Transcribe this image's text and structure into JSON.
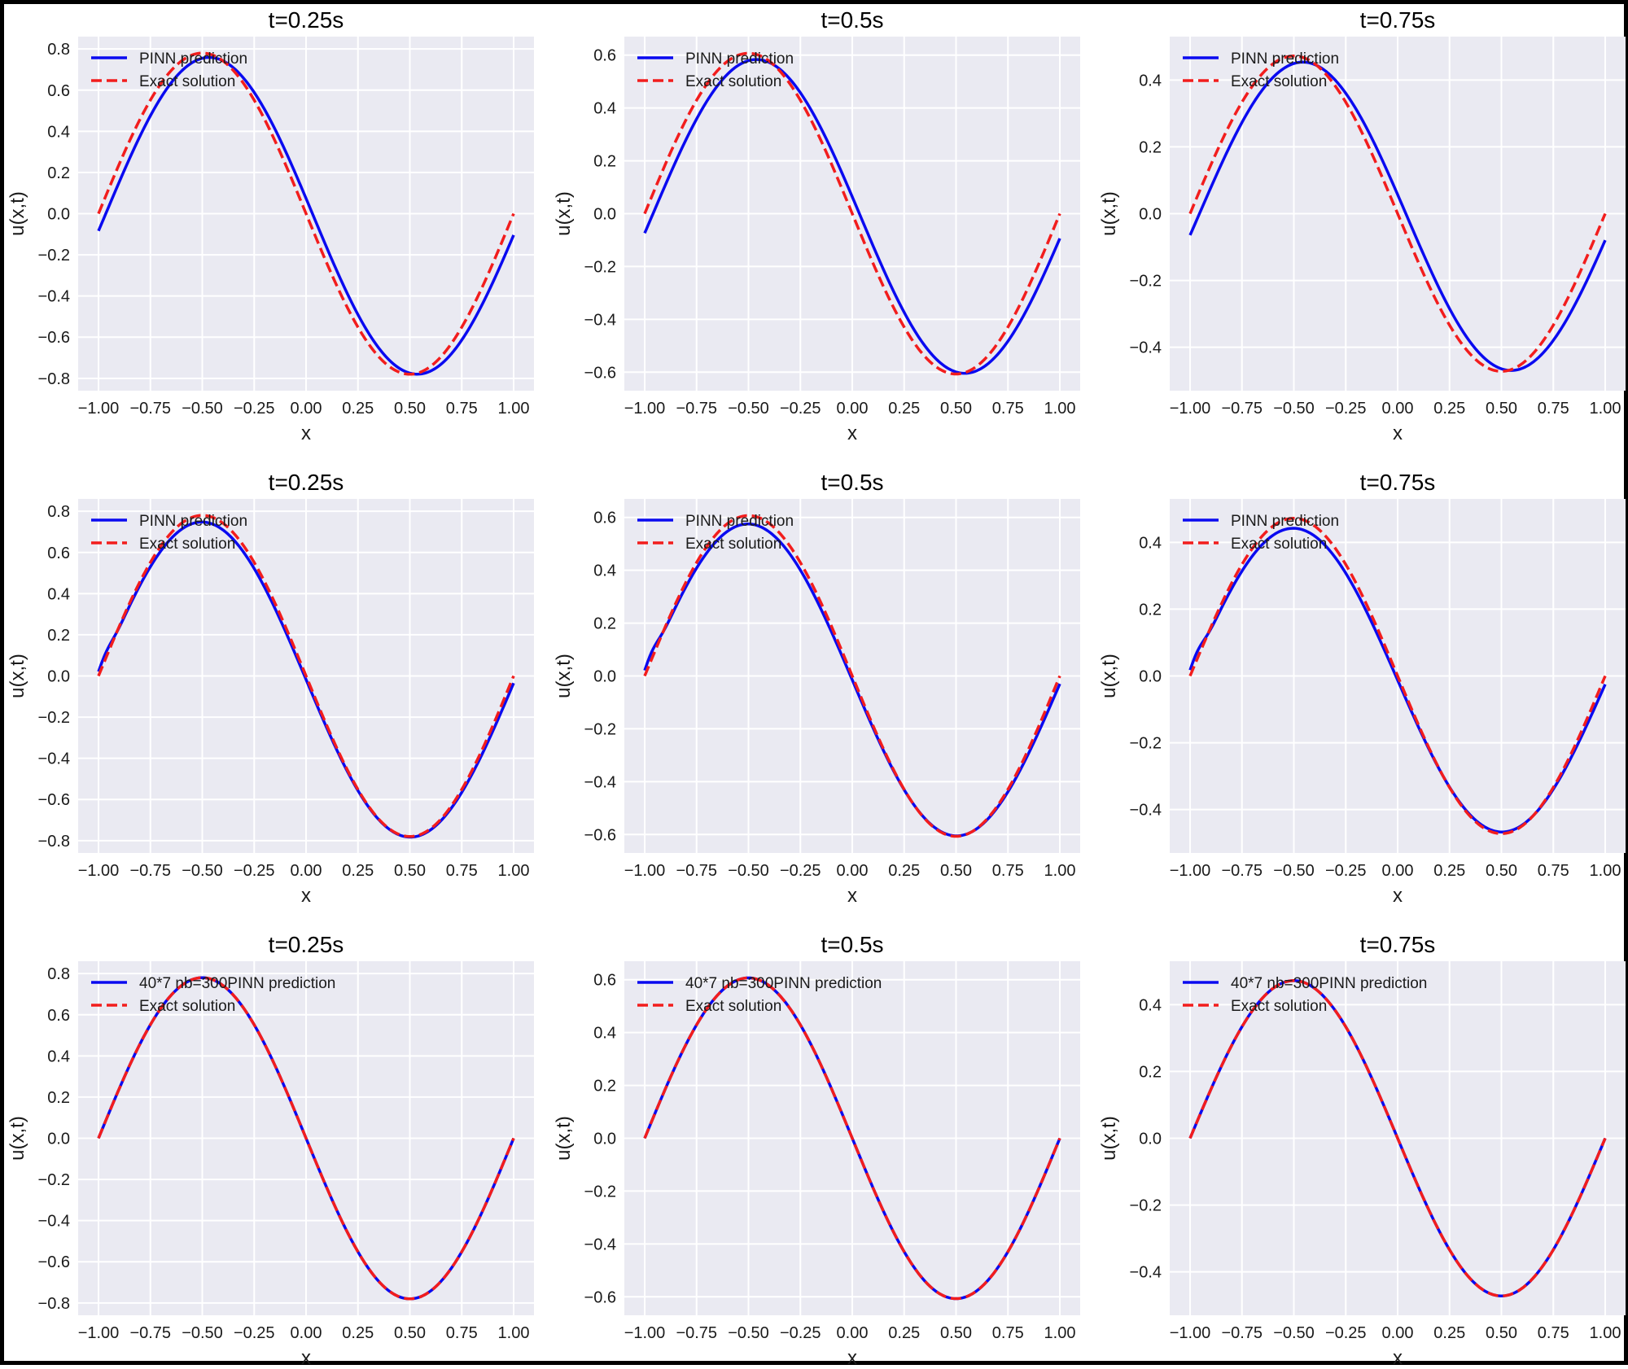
{
  "colors": {
    "prediction": "#0a0af0",
    "exact": "#f21d1d",
    "background": "#eaeaf2",
    "grid": "#ffffff"
  },
  "chart_data": [
    {
      "type": "line",
      "title": "t=0.25s",
      "xlabel": "x",
      "ylabel": "u(x,t)",
      "t": 0.25,
      "amplitude": 0.78,
      "xlim": [
        -1.0,
        1.0
      ],
      "ylim": [
        -0.86,
        0.86
      ],
      "xticks": [
        -1.0,
        -0.75,
        -0.5,
        -0.25,
        0.0,
        0.25,
        0.5,
        0.75,
        1.0
      ],
      "xtick_labels": [
        "−1.00",
        "−0.75",
        "−0.50",
        "−0.25",
        "0.00",
        "0.25",
        "0.50",
        "0.75",
        "1.00"
      ],
      "yticks": [
        -0.8,
        -0.6,
        -0.4,
        -0.2,
        0.0,
        0.2,
        0.4,
        0.6,
        0.8
      ],
      "ytick_labels": [
        "−0.8",
        "−0.6",
        "−0.4",
        "−0.2",
        "0.0",
        "0.2",
        "0.4",
        "0.6",
        "0.8"
      ],
      "grid": true,
      "legend_position": "top-left",
      "series": [
        {
          "name": "PINN prediction",
          "role": "prediction",
          "style": "solid",
          "phase_shift": 0.035,
          "amplitude_scale": 0.98,
          "endpoint": -0.02,
          "bump": 0.0
        },
        {
          "name": "Exact solution",
          "role": "exact",
          "style": "dashed",
          "phase_shift": 0.0,
          "amplitude_scale": 1.0,
          "endpoint": 0.0,
          "bump": 0.0
        }
      ]
    },
    {
      "type": "line",
      "title": "t=0.5s",
      "xlabel": "x",
      "ylabel": "u(x,t)",
      "t": 0.5,
      "amplitude": 0.607,
      "xlim": [
        -1.0,
        1.0
      ],
      "ylim": [
        -0.67,
        0.67
      ],
      "xticks": [
        -1.0,
        -0.75,
        -0.5,
        -0.25,
        0.0,
        0.25,
        0.5,
        0.75,
        1.0
      ],
      "xtick_labels": [
        "−1.00",
        "−0.75",
        "−0.50",
        "−0.25",
        "0.00",
        "0.25",
        "0.50",
        "0.75",
        "1.00"
      ],
      "yticks": [
        -0.6,
        -0.4,
        -0.2,
        0.0,
        0.2,
        0.4,
        0.6
      ],
      "ytick_labels": [
        "−0.6",
        "−0.4",
        "−0.2",
        "0.0",
        "0.2",
        "0.4",
        "0.6"
      ],
      "grid": true,
      "legend_position": "top-left",
      "series": [
        {
          "name": "PINN prediction",
          "role": "prediction",
          "style": "solid",
          "phase_shift": 0.04,
          "amplitude_scale": 0.97,
          "endpoint": -0.02,
          "bump": 0.0
        },
        {
          "name": "Exact solution",
          "role": "exact",
          "style": "dashed",
          "phase_shift": 0.0,
          "amplitude_scale": 1.0,
          "endpoint": 0.0,
          "bump": 0.0
        }
      ]
    },
    {
      "type": "line",
      "title": "t=0.75s",
      "xlabel": "x",
      "ylabel": "u(x,t)",
      "t": 0.75,
      "amplitude": 0.472,
      "xlim": [
        -1.0,
        1.0
      ],
      "ylim": [
        -0.53,
        0.53
      ],
      "xticks": [
        -1.0,
        -0.75,
        -0.5,
        -0.25,
        0.0,
        0.25,
        0.5,
        0.75,
        1.0
      ],
      "xtick_labels": [
        "−1.00",
        "−0.75",
        "−0.50",
        "−0.25",
        "0.00",
        "0.25",
        "0.50",
        "0.75",
        "1.00"
      ],
      "yticks": [
        -0.4,
        -0.2,
        0.0,
        0.2,
        0.4
      ],
      "ytick_labels": [
        "−0.4",
        "−0.2",
        "0.0",
        "0.2",
        "0.4"
      ],
      "grid": true,
      "legend_position": "top-left",
      "series": [
        {
          "name": "PINN prediction",
          "role": "prediction",
          "style": "solid",
          "phase_shift": 0.045,
          "amplitude_scale": 0.97,
          "endpoint": -0.015,
          "bump": 0.0
        },
        {
          "name": "Exact solution",
          "role": "exact",
          "style": "dashed",
          "phase_shift": 0.0,
          "amplitude_scale": 1.0,
          "endpoint": 0.0,
          "bump": 0.0
        }
      ]
    },
    {
      "type": "line",
      "title": "t=0.25s",
      "xlabel": "x",
      "ylabel": "u(x,t)",
      "t": 0.25,
      "amplitude": 0.78,
      "xlim": [
        -1.0,
        1.0
      ],
      "ylim": [
        -0.86,
        0.86
      ],
      "xticks": [
        -1.0,
        -0.75,
        -0.5,
        -0.25,
        0.0,
        0.25,
        0.5,
        0.75,
        1.0
      ],
      "xtick_labels": [
        "−1.00",
        "−0.75",
        "−0.50",
        "−0.25",
        "0.00",
        "0.25",
        "0.50",
        "0.75",
        "1.00"
      ],
      "yticks": [
        -0.8,
        -0.6,
        -0.4,
        -0.2,
        0.0,
        0.2,
        0.4,
        0.6,
        0.8
      ],
      "ytick_labels": [
        "−0.8",
        "−0.6",
        "−0.4",
        "−0.2",
        "0.0",
        "0.2",
        "0.4",
        "0.6",
        "0.8"
      ],
      "grid": true,
      "legend_position": "top-left",
      "series": [
        {
          "name": "PINN prediction",
          "role": "prediction",
          "style": "solid",
          "phase_shift": 0.0,
          "amplitude_scale": 0.97,
          "endpoint": -0.035,
          "bump": 0.03
        },
        {
          "name": "Exact solution",
          "role": "exact",
          "style": "dashed",
          "phase_shift": 0.0,
          "amplitude_scale": 1.0,
          "endpoint": 0.0,
          "bump": 0.0
        }
      ]
    },
    {
      "type": "line",
      "title": "t=0.5s",
      "xlabel": "x",
      "ylabel": "u(x,t)",
      "t": 0.5,
      "amplitude": 0.607,
      "xlim": [
        -1.0,
        1.0
      ],
      "ylim": [
        -0.67,
        0.67
      ],
      "xticks": [
        -1.0,
        -0.75,
        -0.5,
        -0.25,
        0.0,
        0.25,
        0.5,
        0.75,
        1.0
      ],
      "xtick_labels": [
        "−1.00",
        "−0.75",
        "−0.50",
        "−0.25",
        "0.00",
        "0.25",
        "0.50",
        "0.75",
        "1.00"
      ],
      "yticks": [
        -0.6,
        -0.4,
        -0.2,
        0.0,
        0.2,
        0.4,
        0.6
      ],
      "ytick_labels": [
        "−0.6",
        "−0.4",
        "−0.2",
        "0.0",
        "0.2",
        "0.4",
        "0.6"
      ],
      "grid": true,
      "legend_position": "top-left",
      "series": [
        {
          "name": "PINN prediction",
          "role": "prediction",
          "style": "solid",
          "phase_shift": 0.0,
          "amplitude_scale": 0.96,
          "endpoint": -0.03,
          "bump": 0.03
        },
        {
          "name": "Exact solution",
          "role": "exact",
          "style": "dashed",
          "phase_shift": 0.0,
          "amplitude_scale": 1.0,
          "endpoint": 0.0,
          "bump": 0.0
        }
      ]
    },
    {
      "type": "line",
      "title": "t=0.75s",
      "xlabel": "x",
      "ylabel": "u(x,t)",
      "t": 0.75,
      "amplitude": 0.472,
      "xlim": [
        -1.0,
        1.0
      ],
      "ylim": [
        -0.53,
        0.53
      ],
      "xticks": [
        -1.0,
        -0.75,
        -0.5,
        -0.25,
        0.0,
        0.25,
        0.5,
        0.75,
        1.0
      ],
      "xtick_labels": [
        "−1.00",
        "−0.75",
        "−0.50",
        "−0.25",
        "0.00",
        "0.25",
        "0.50",
        "0.75",
        "1.00"
      ],
      "yticks": [
        -0.4,
        -0.2,
        0.0,
        0.2,
        0.4
      ],
      "ytick_labels": [
        "−0.4",
        "−0.2",
        "0.0",
        "0.2",
        "0.4"
      ],
      "grid": true,
      "legend_position": "top-left",
      "series": [
        {
          "name": "PINN prediction",
          "role": "prediction",
          "style": "solid",
          "phase_shift": 0.0,
          "amplitude_scale": 0.95,
          "endpoint": -0.025,
          "bump": 0.025
        },
        {
          "name": "Exact solution",
          "role": "exact",
          "style": "dashed",
          "phase_shift": 0.0,
          "amplitude_scale": 1.0,
          "endpoint": 0.0,
          "bump": 0.0
        }
      ]
    },
    {
      "type": "line",
      "title": "t=0.25s",
      "xlabel": "x",
      "ylabel": "u(x,t)",
      "t": 0.25,
      "amplitude": 0.78,
      "xlim": [
        -1.0,
        1.0
      ],
      "ylim": [
        -0.86,
        0.86
      ],
      "xticks": [
        -1.0,
        -0.75,
        -0.5,
        -0.25,
        0.0,
        0.25,
        0.5,
        0.75,
        1.0
      ],
      "xtick_labels": [
        "−1.00",
        "−0.75",
        "−0.50",
        "−0.25",
        "0.00",
        "0.25",
        "0.50",
        "0.75",
        "1.00"
      ],
      "yticks": [
        -0.8,
        -0.6,
        -0.4,
        -0.2,
        0.0,
        0.2,
        0.4,
        0.6,
        0.8
      ],
      "ytick_labels": [
        "−0.8",
        "−0.6",
        "−0.4",
        "−0.2",
        "0.0",
        "0.2",
        "0.4",
        "0.6",
        "0.8"
      ],
      "grid": true,
      "legend_position": "top-left",
      "series": [
        {
          "name": "40*7 nb=300PINN prediction",
          "role": "prediction",
          "style": "solid",
          "phase_shift": 0.0,
          "amplitude_scale": 1.0,
          "endpoint": 0.0,
          "bump": 0.0
        },
        {
          "name": "Exact solution",
          "role": "exact",
          "style": "dashed",
          "phase_shift": 0.0,
          "amplitude_scale": 1.0,
          "endpoint": 0.0,
          "bump": 0.0
        }
      ]
    },
    {
      "type": "line",
      "title": "t=0.5s",
      "xlabel": "x",
      "ylabel": "u(x,t)",
      "t": 0.5,
      "amplitude": 0.607,
      "xlim": [
        -1.0,
        1.0
      ],
      "ylim": [
        -0.67,
        0.67
      ],
      "xticks": [
        -1.0,
        -0.75,
        -0.5,
        -0.25,
        0.0,
        0.25,
        0.5,
        0.75,
        1.0
      ],
      "xtick_labels": [
        "−1.00",
        "−0.75",
        "−0.50",
        "−0.25",
        "0.00",
        "0.25",
        "0.50",
        "0.75",
        "1.00"
      ],
      "yticks": [
        -0.6,
        -0.4,
        -0.2,
        0.0,
        0.2,
        0.4,
        0.6
      ],
      "ytick_labels": [
        "−0.6",
        "−0.4",
        "−0.2",
        "0.0",
        "0.2",
        "0.4",
        "0.6"
      ],
      "grid": true,
      "legend_position": "top-left",
      "series": [
        {
          "name": "40*7 nb=300PINN prediction",
          "role": "prediction",
          "style": "solid",
          "phase_shift": 0.0,
          "amplitude_scale": 1.0,
          "endpoint": 0.0,
          "bump": 0.0
        },
        {
          "name": "Exact solution",
          "role": "exact",
          "style": "dashed",
          "phase_shift": 0.0,
          "amplitude_scale": 1.0,
          "endpoint": 0.0,
          "bump": 0.0
        }
      ]
    },
    {
      "type": "line",
      "title": "t=0.75s",
      "xlabel": "x",
      "ylabel": "u(x,t)",
      "t": 0.75,
      "amplitude": 0.472,
      "xlim": [
        -1.0,
        1.0
      ],
      "ylim": [
        -0.53,
        0.53
      ],
      "xticks": [
        -1.0,
        -0.75,
        -0.5,
        -0.25,
        0.0,
        0.25,
        0.5,
        0.75,
        1.0
      ],
      "xtick_labels": [
        "−1.00",
        "−0.75",
        "−0.50",
        "−0.25",
        "0.00",
        "0.25",
        "0.50",
        "0.75",
        "1.00"
      ],
      "yticks": [
        -0.4,
        -0.2,
        0.0,
        0.2,
        0.4
      ],
      "ytick_labels": [
        "−0.4",
        "−0.2",
        "0.0",
        "0.2",
        "0.4"
      ],
      "grid": true,
      "legend_position": "top-left",
      "series": [
        {
          "name": "40*7 nb=300PINN prediction",
          "role": "prediction",
          "style": "solid",
          "phase_shift": 0.0,
          "amplitude_scale": 1.0,
          "endpoint": 0.0,
          "bump": 0.0
        },
        {
          "name": "Exact solution",
          "role": "exact",
          "style": "dashed",
          "phase_shift": 0.0,
          "amplitude_scale": 1.0,
          "endpoint": 0.0,
          "bump": 0.0
        }
      ]
    }
  ]
}
